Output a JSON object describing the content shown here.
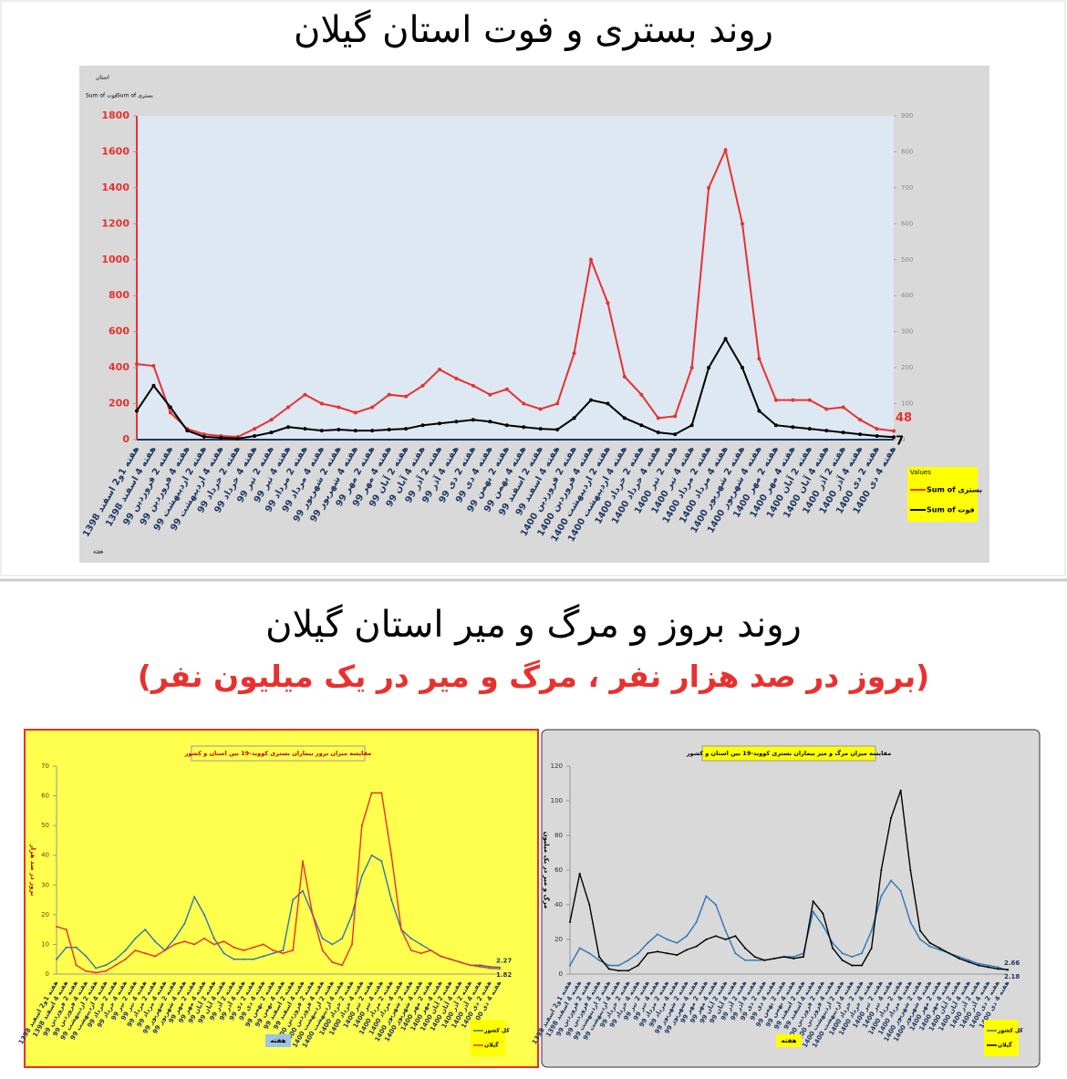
{
  "chart_data": [
    {
      "type": "line",
      "title": "روند بستری و فوت استان گیلان",
      "field_buttons": [
        "استان",
        "Sum of بستری",
        "Sum of فوت",
        "هفته"
      ],
      "legend_title": "Values",
      "categories": [
        "هفته 1و2 اسفند 1398",
        "هفته 4 اسفند 1398",
        "هفته 2 فروردین 99",
        "هفته 4 فروردین 99",
        "هفته 2 اردیبهشت 99",
        "هفته 4 اردیبهشت 99",
        "هفته 2 خرداد 99",
        "هفته 4 خرداد 99",
        "هفته 2 تیر 99",
        "هفته 4 تیر 99",
        "هفته 2 مرداد 99",
        "هفته 4 مرداد 99",
        "هفته 2 شهریور 99",
        "هفته 4 شهریور 99",
        "هفته 2 مهر 99",
        "هفته 4 مهر 99",
        "هفته 2 آبان 99",
        "هفته 4 آبان 99",
        "هفته 2 آذر 99",
        "هفته 4 آذر 99",
        "هفته 2 دی 99",
        "هفته 4 دی 99",
        "هفته 2 بهمن 99",
        "هفته 4 بهمن 99",
        "هفته 2 اسفند 99",
        "هفته 4 اسفند 99",
        "هفته 2 فروردین 1400",
        "هفته 4 فروردین 1400",
        "هفته 2 اردیبهشت 1400",
        "هفته 4 اردیبهشت 1400",
        "هفته 2 خرداد 1400",
        "هفته 4 خرداد 1400",
        "هفته 2 تیر 1400",
        "هفته 4 تیر 1400",
        "هفته 2 مرداد 1400",
        "هفته 4 مرداد 1400",
        "هفته 2 شهریور 1400",
        "هفته 4 شهریور 1400",
        "هفته 2 مهر 1400",
        "هفته 4 مهر 1400",
        "هفته 2 آبان 1400",
        "هفته 4 آبان 1400",
        "هفته 2 آذر 1400",
        "هفته 4 آذر 1400",
        "هفته 2 دی 1400",
        "هفته 4 دی 1400"
      ],
      "series": [
        {
          "name": "Sum of بستری",
          "color": "#e8312f",
          "values": [
            420,
            410,
            150,
            60,
            30,
            20,
            15,
            60,
            110,
            180,
            250,
            200,
            180,
            150,
            180,
            250,
            240,
            300,
            390,
            340,
            300,
            250,
            280,
            200,
            170,
            200,
            480,
            1000,
            760,
            350,
            250,
            120,
            130,
            400,
            1400,
            1610,
            1200,
            450,
            220,
            220,
            220,
            170,
            180,
            110,
            60,
            48
          ]
        },
        {
          "name": "Sum of فوت",
          "color": "#000000",
          "axis": "y2",
          "values": [
            80,
            150,
            90,
            25,
            8,
            5,
            3,
            10,
            20,
            35,
            30,
            25,
            28,
            25,
            25,
            28,
            30,
            40,
            45,
            50,
            55,
            50,
            40,
            35,
            30,
            28,
            60,
            110,
            100,
            60,
            40,
            20,
            15,
            40,
            200,
            280,
            200,
            80,
            40,
            35,
            30,
            25,
            20,
            15,
            10,
            7
          ]
        }
      ],
      "ylim": [
        0,
        1800
      ],
      "yticks": [
        0,
        200,
        400,
        600,
        800,
        1000,
        1200,
        1400,
        1600,
        1800
      ],
      "y2lim": [
        0,
        900
      ],
      "y2ticks": [
        0,
        100,
        200,
        300,
        400,
        500,
        600,
        700,
        800,
        900
      ]
    },
    {
      "type": "line",
      "title": "مقایسه میزان بروز بیماران بستری کووید-19 بین استان و کشور",
      "ylabel": "بروز در صد هزار",
      "xlabel": "هفته",
      "series": [
        {
          "name": "کل کشور",
          "color": "#2e75b6",
          "values": [
            5,
            9,
            9,
            6,
            2,
            3,
            5,
            8,
            12,
            15,
            11,
            8,
            12,
            17,
            26,
            20,
            12,
            7,
            5,
            5,
            5,
            6,
            7,
            8,
            25,
            28,
            20,
            12,
            10,
            12,
            20,
            33,
            40,
            38,
            25,
            15,
            12,
            10,
            8,
            6,
            5,
            4,
            3,
            3,
            2.5,
            2.27
          ]
        },
        {
          "name": "گیلان",
          "color": "#e8312f",
          "values": [
            16,
            15,
            3,
            1,
            0.5,
            1,
            3,
            5,
            8,
            7,
            6,
            8,
            10,
            11,
            10,
            12,
            10,
            11,
            9,
            8,
            9,
            10,
            8,
            7,
            8,
            38,
            20,
            8,
            4,
            3,
            10,
            50,
            61,
            61,
            40,
            15,
            8,
            7,
            8,
            6,
            5,
            4,
            3,
            2.5,
            2,
            1.82
          ]
        }
      ],
      "ylim": [
        0,
        70
      ],
      "yticks": [
        0,
        10,
        20,
        30,
        40,
        50,
        60,
        70
      ]
    },
    {
      "type": "line",
      "title": "مقایسه میزان مرگ و میر بیماران بستری کووید-19 بین استان و کشور",
      "ylabel": "مرگ و میر در یک میلیون",
      "xlabel": "هفته",
      "series": [
        {
          "name": "کل کشور",
          "color": "#2e75b6",
          "values": [
            5,
            15,
            12,
            8,
            5,
            5,
            8,
            12,
            18,
            23,
            20,
            18,
            22,
            30,
            45,
            40,
            25,
            12,
            8,
            8,
            8,
            9,
            10,
            10,
            12,
            36,
            28,
            18,
            12,
            10,
            12,
            25,
            45,
            54,
            48,
            30,
            20,
            16,
            14,
            12,
            10,
            8,
            6,
            5,
            4,
            2.18
          ]
        },
        {
          "name": "گیلان",
          "color": "#000000",
          "values": [
            30,
            58,
            40,
            10,
            3,
            2,
            2,
            5,
            12,
            13,
            12,
            11,
            14,
            16,
            20,
            22,
            20,
            22,
            15,
            10,
            8,
            9,
            10,
            9,
            10,
            42,
            35,
            15,
            8,
            5,
            5,
            15,
            60,
            90,
            106,
            60,
            25,
            18,
            15,
            12,
            9,
            7,
            5,
            4,
            3,
            2.66
          ]
        }
      ],
      "ylim": [
        0,
        120
      ],
      "yticks": [
        0,
        20,
        40,
        60,
        80,
        100,
        120
      ]
    }
  ],
  "section_title": "روند بروز و مرگ و میر استان گیلان",
  "section_subtitle": "(بروز در صد هزار نفر ، مرگ و میر در یک میلیون نفر)"
}
